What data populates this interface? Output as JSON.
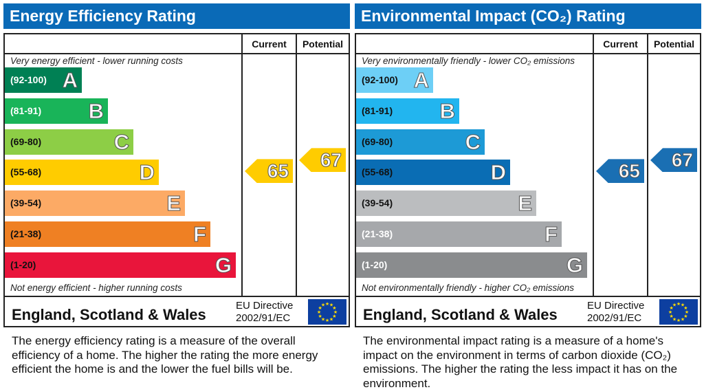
{
  "chart_data": [
    {
      "type": "bar",
      "title": "Energy Efficiency Rating",
      "columns": [
        "Current",
        "Potential"
      ],
      "top_note": "Very energy efficient - lower running costs",
      "bottom_note": "Not energy efficient - higher running costs",
      "bands": [
        {
          "range": "(92-100)",
          "letter": "A",
          "color": "#008054",
          "text": "#fff"
        },
        {
          "range": "(81-91)",
          "letter": "B",
          "color": "#19b459",
          "text": "#fff"
        },
        {
          "range": "(69-80)",
          "letter": "C",
          "color": "#8dce46",
          "text": "#111"
        },
        {
          "range": "(55-68)",
          "letter": "D",
          "color": "#ffcc00",
          "text": "#111"
        },
        {
          "range": "(39-54)",
          "letter": "E",
          "color": "#fcaa65",
          "text": "#111"
        },
        {
          "range": "(21-38)",
          "letter": "F",
          "color": "#ef8023",
          "text": "#111"
        },
        {
          "range": "(1-20)",
          "letter": "G",
          "color": "#e9153b",
          "text": "#111"
        }
      ],
      "current": 65,
      "potential": 67,
      "arrow_color": "#ffcc00",
      "country": "England, Scotland & Wales",
      "eu_line1": "EU Directive",
      "eu_line2": "2002/91/EC",
      "description": "The energy efficiency rating is a measure of the overall efficiency of a home. The higher the rating the more energy efficient the home is and the lower the fuel bills will be."
    },
    {
      "type": "bar",
      "title": "Environmental Impact (CO₂) Rating",
      "columns": [
        "Current",
        "Potential"
      ],
      "top_note": "Very environmentally friendly - lower CO₂ emissions",
      "bottom_note": "Not environmentally friendly - higher CO₂ emissions",
      "bands": [
        {
          "range": "(92-100)",
          "letter": "A",
          "color": "#6dcff6",
          "text": "#111"
        },
        {
          "range": "(81-91)",
          "letter": "B",
          "color": "#22b5ef",
          "text": "#111"
        },
        {
          "range": "(69-80)",
          "letter": "C",
          "color": "#1d9ad6",
          "text": "#111"
        },
        {
          "range": "(55-68)",
          "letter": "D",
          "color": "#0a6db4",
          "text": "#111"
        },
        {
          "range": "(39-54)",
          "letter": "E",
          "color": "#bbbdbf",
          "text": "#111"
        },
        {
          "range": "(21-38)",
          "letter": "F",
          "color": "#a6a8ab",
          "text": "#fff"
        },
        {
          "range": "(1-20)",
          "letter": "G",
          "color": "#8a8c8e",
          "text": "#fff"
        }
      ],
      "current": 65,
      "potential": 67,
      "arrow_color": "#1a6fb3",
      "country": "England, Scotland & Wales",
      "eu_line1": "EU Directive",
      "eu_line2": "2002/91/EC",
      "description": "The environmental impact rating is a measure of a home's impact on the environment in terms of carbon dioxide (CO₂) emissions. The higher the rating the less impact it has on the environment."
    }
  ]
}
